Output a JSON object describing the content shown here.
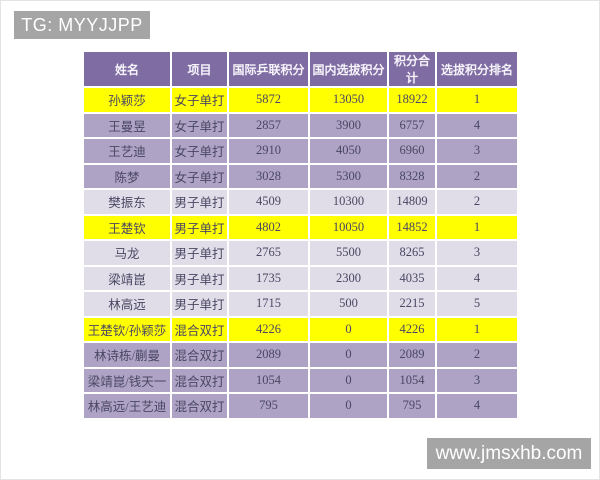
{
  "badges": {
    "tg_label": "TG: MYYJJPP",
    "watermark": "www.jmsxhb.com"
  },
  "colors": {
    "header_bg": "#7e6ca3",
    "header_text": "#f6f3fa",
    "row_purple": "#aea3c4",
    "row_light": "#e0dde9",
    "row_yellow": "#ffff00",
    "badge_gray": "#a5a5a5",
    "cell_text": "#4a4763"
  },
  "chart_data": {
    "type": "table",
    "columns": [
      "姓名",
      "项目",
      "国际乒联积分",
      "国内选拔积分",
      "积分合计",
      "选拔积分排名"
    ],
    "rows": [
      {
        "name": "孙颖莎",
        "event": "女子单打",
        "ittf_points": "5872",
        "domestic_points": "13050",
        "total_points": "18922",
        "rank": "1",
        "row_color": "yellow"
      },
      {
        "name": "王曼昱",
        "event": "女子单打",
        "ittf_points": "2857",
        "domestic_points": "3900",
        "total_points": "6757",
        "rank": "4",
        "row_color": "purple"
      },
      {
        "name": "王艺迪",
        "event": "女子单打",
        "ittf_points": "2910",
        "domestic_points": "4050",
        "total_points": "6960",
        "rank": "3",
        "row_color": "purple"
      },
      {
        "name": "陈梦",
        "event": "女子单打",
        "ittf_points": "3028",
        "domestic_points": "5300",
        "total_points": "8328",
        "rank": "2",
        "row_color": "purple"
      },
      {
        "name": "樊振东",
        "event": "男子单打",
        "ittf_points": "4509",
        "domestic_points": "10300",
        "total_points": "14809",
        "rank": "2",
        "row_color": "light"
      },
      {
        "name": "王楚钦",
        "event": "男子单打",
        "ittf_points": "4802",
        "domestic_points": "10050",
        "total_points": "14852",
        "rank": "1",
        "row_color": "yellow"
      },
      {
        "name": "马龙",
        "event": "男子单打",
        "ittf_points": "2765",
        "domestic_points": "5500",
        "total_points": "8265",
        "rank": "3",
        "row_color": "light"
      },
      {
        "name": "梁靖崑",
        "event": "男子单打",
        "ittf_points": "1735",
        "domestic_points": "2300",
        "total_points": "4035",
        "rank": "4",
        "row_color": "light"
      },
      {
        "name": "林高远",
        "event": "男子单打",
        "ittf_points": "1715",
        "domestic_points": "500",
        "total_points": "2215",
        "rank": "5",
        "row_color": "light"
      },
      {
        "name": "王楚钦/孙颖莎",
        "event": "混合双打",
        "ittf_points": "4226",
        "domestic_points": "0",
        "total_points": "4226",
        "rank": "1",
        "row_color": "yellow"
      },
      {
        "name": "林诗栋/蒯曼",
        "event": "混合双打",
        "ittf_points": "2089",
        "domestic_points": "0",
        "total_points": "2089",
        "rank": "2",
        "row_color": "purple"
      },
      {
        "name": "梁靖崑/钱天一",
        "event": "混合双打",
        "ittf_points": "1054",
        "domestic_points": "0",
        "total_points": "1054",
        "rank": "3",
        "row_color": "purple"
      },
      {
        "name": "林高远/王艺迪",
        "event": "混合双打",
        "ittf_points": "795",
        "domestic_points": "0",
        "total_points": "795",
        "rank": "4",
        "row_color": "purple"
      }
    ]
  }
}
